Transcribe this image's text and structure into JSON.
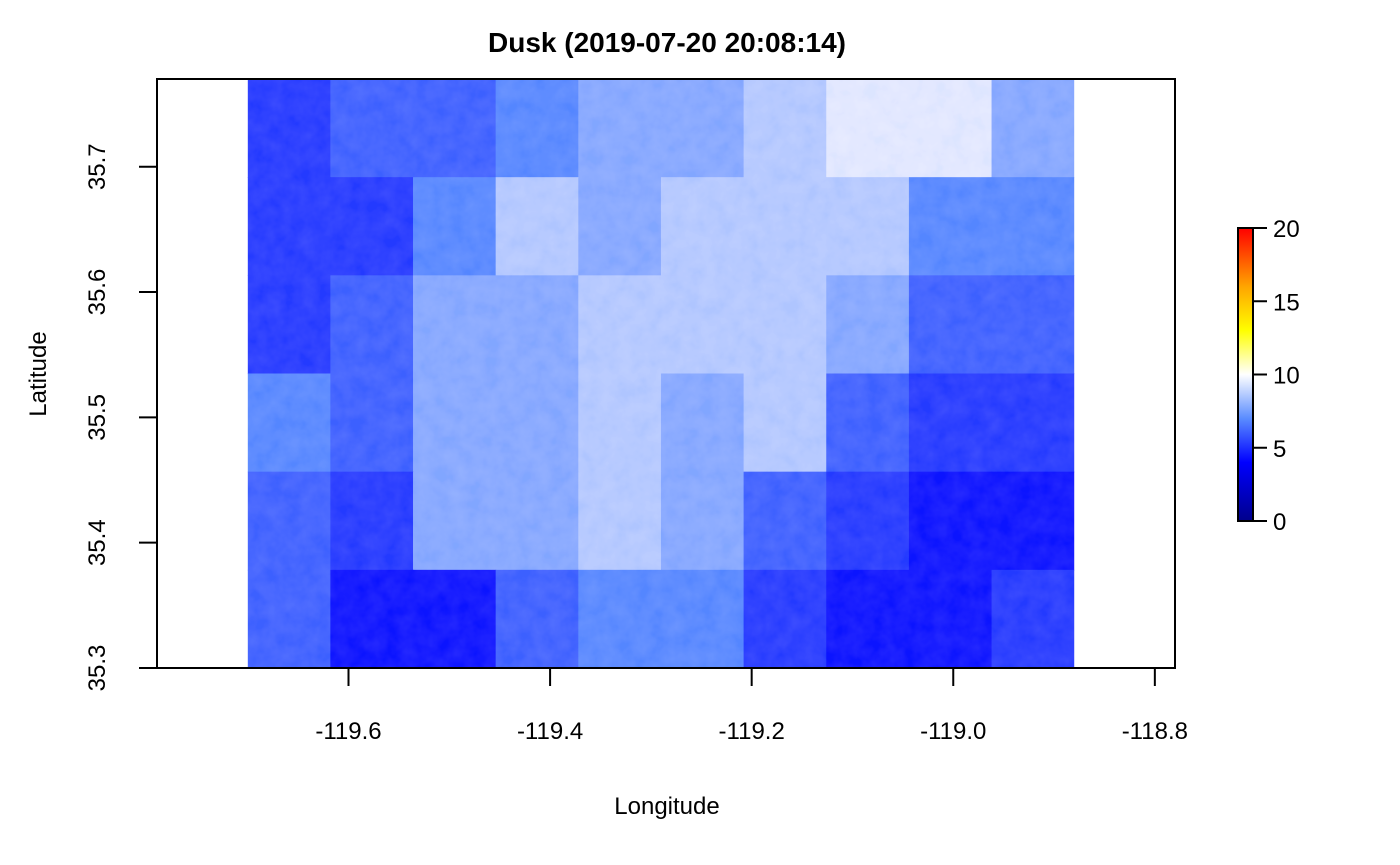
{
  "chart_data": {
    "type": "heatmap",
    "title": "Dusk (2019-07-20 20:08:14)",
    "xlabel": "Longitude",
    "ylabel": "Latitude",
    "xlim": [
      -119.79,
      -118.78
    ],
    "ylim": [
      35.3,
      35.77
    ],
    "x_ticks": [
      -119.6,
      -119.4,
      -119.2,
      -119.0,
      -118.8
    ],
    "x_tick_labels": [
      "-119.6",
      "-119.4",
      "-119.2",
      "-119.0",
      "-118.8"
    ],
    "y_ticks": [
      35.3,
      35.4,
      35.5,
      35.6,
      35.7
    ],
    "y_tick_labels": [
      "35.3",
      "35.4",
      "35.5",
      "35.6",
      "35.7"
    ],
    "raster_extent": {
      "lon": [
        -119.7,
        -118.88
      ],
      "lat": [
        35.3,
        35.77
      ]
    },
    "legend": {
      "position": "right",
      "range": [
        0,
        20
      ],
      "ticks": [
        0,
        5,
        10,
        15,
        20
      ],
      "tick_labels": [
        "0",
        "5",
        "10",
        "15",
        "20"
      ],
      "color_stops": [
        {
          "value": 0,
          "color": "#00008b"
        },
        {
          "value": 4,
          "color": "#0000ff"
        },
        {
          "value": 7,
          "color": "#5a8cff"
        },
        {
          "value": 10,
          "color": "#ffffff"
        },
        {
          "value": 13,
          "color": "#ffff00"
        },
        {
          "value": 16,
          "color": "#ffa500"
        },
        {
          "value": 20,
          "color": "#ff0000"
        }
      ]
    },
    "approximate_values": {
      "grid_cols": 10,
      "grid_rows": 6,
      "lon_centers": [
        -119.659,
        -119.577,
        -119.495,
        -119.413,
        -119.331,
        -119.249,
        -119.167,
        -119.085,
        -119.003,
        -118.921
      ],
      "lat_centers": [
        35.731,
        35.652,
        35.574,
        35.496,
        35.418,
        35.339
      ],
      "values": [
        [
          5,
          6,
          6,
          7,
          8,
          8,
          9,
          10,
          10,
          8
        ],
        [
          5,
          5,
          7,
          9,
          8,
          9,
          9,
          9,
          7,
          7
        ],
        [
          5,
          6,
          8,
          8,
          9,
          9,
          9,
          8,
          6,
          6
        ],
        [
          7,
          6,
          8,
          8,
          9,
          8,
          9,
          6,
          5,
          5
        ],
        [
          6,
          5,
          8,
          8,
          9,
          8,
          6,
          5,
          4,
          4
        ],
        [
          6,
          4,
          4,
          6,
          7,
          7,
          5,
          4,
          4,
          5
        ]
      ]
    }
  }
}
